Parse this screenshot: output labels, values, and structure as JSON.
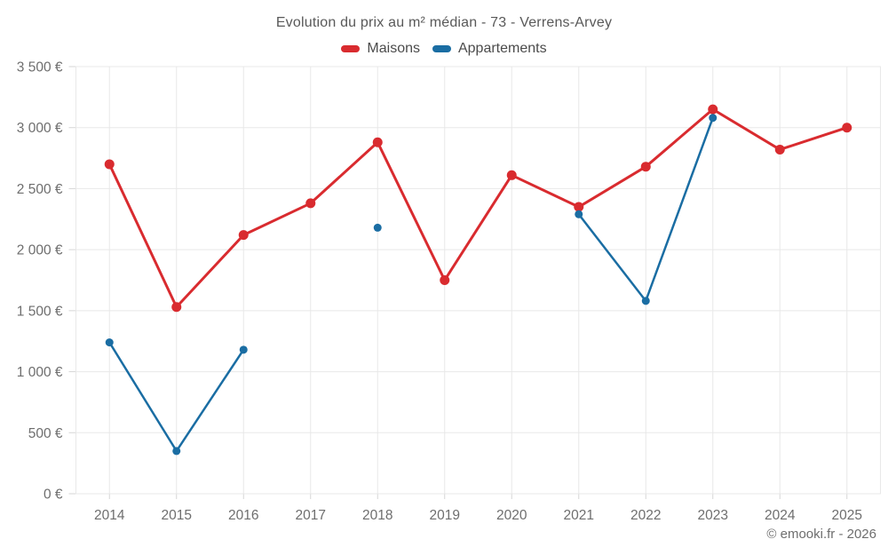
{
  "title": "Evolution du prix au m² médian - 73 - Verrens-Arvey",
  "legend": [
    {
      "label": "Maisons",
      "color": "#d92b2f"
    },
    {
      "label": "Appartements",
      "color": "#1a6da3"
    }
  ],
  "footer": "© emooki.fr - 2026",
  "colors": {
    "grid": "#e8e8e8",
    "tick": "#d6d6d6",
    "axis_text": "#6e6e6e",
    "title_text": "#595959",
    "legend_text": "#4b4b4b"
  },
  "chart_data": {
    "type": "line",
    "title": "Evolution du prix au m² médian - 73 - Verrens-Arvey",
    "categories": [
      "2014",
      "2015",
      "2016",
      "2017",
      "2018",
      "2019",
      "2020",
      "2021",
      "2022",
      "2023",
      "2024",
      "2025"
    ],
    "series": [
      {
        "name": "Maisons",
        "color": "#d92b2f",
        "values": [
          2700,
          1530,
          2120,
          2380,
          2880,
          1750,
          2610,
          2350,
          2680,
          3150,
          2820,
          3000
        ]
      },
      {
        "name": "Appartements",
        "color": "#1a6da3",
        "values": [
          1240,
          350,
          1180,
          null,
          2180,
          null,
          null,
          2290,
          1580,
          3080,
          null,
          null
        ]
      }
    ],
    "xlabel": "",
    "ylabel": "",
    "ylim": [
      0,
      3500
    ],
    "ytick_step": 500,
    "ytick_format": "{value} €",
    "grid": true,
    "legend_position": "top"
  }
}
